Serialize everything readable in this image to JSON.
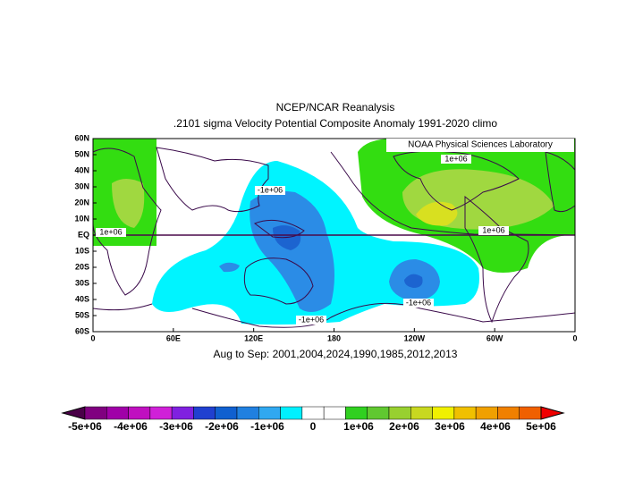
{
  "map": {
    "title": "NCEP/NCAR Reanalysis",
    "subtitle": ".2101 sigma Velocity Potential  Composite Anomaly 1991-2020 climo",
    "credit": "NOAA Physical Sciences Laboratory",
    "caption": "Aug to Sep: 2001,2004,2024,1990,1985,2012,2013",
    "lat_labels": [
      "60N",
      "50N",
      "40N",
      "30N",
      "20N",
      "10N",
      "EQ",
      "10S",
      "20S",
      "30S",
      "40S",
      "50S",
      "60S"
    ],
    "lon_labels": [
      "0",
      "60E",
      "120E",
      "180",
      "120W",
      "60W",
      "0"
    ],
    "contour_labels": [
      "-1e+06",
      "1e+06",
      "1e+06",
      "1e+06",
      "-1e+06",
      "-1e+06"
    ],
    "colorbar": {
      "labels": [
        "-5e+06",
        "-4e+06",
        "-3e+06",
        "-2e+06",
        "-1e+06",
        "0",
        "1e+06",
        "2e+06",
        "3e+06",
        "4e+06",
        "5e+06"
      ],
      "colors": [
        "#4a0048",
        "#800080",
        "#a000a8",
        "#c010c0",
        "#d020d8",
        "#8020e0",
        "#2040d0",
        "#1060d0",
        "#2080e0",
        "#30a8f0",
        "#00f0ff",
        "#ffffff",
        "#ffffff",
        "#30d020",
        "#60c830",
        "#98d030",
        "#c8d820",
        "#f0f000",
        "#f0c000",
        "#f0a000",
        "#f08000",
        "#f06000",
        "#f00000"
      ]
    }
  }
}
